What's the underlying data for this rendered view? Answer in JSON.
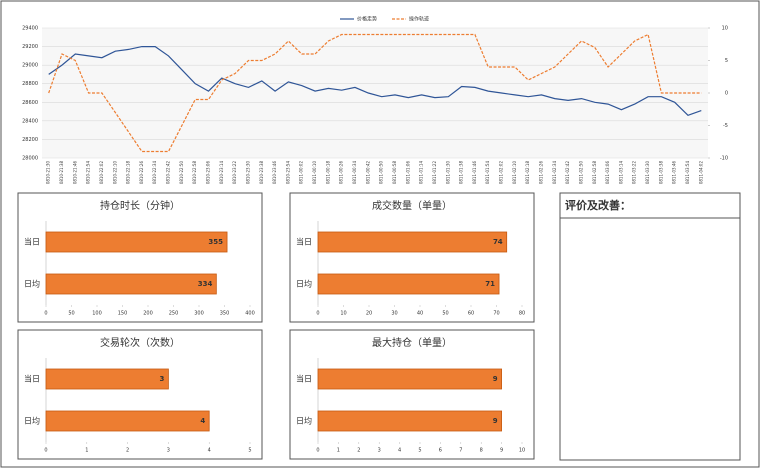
{
  "chart_data": [
    {
      "type": "line",
      "x": [
        "0810-21:30",
        "0810-21:38",
        "0810-21:46",
        "0810-21:54",
        "0810-22:02",
        "0810-22:10",
        "0810-22:18",
        "0810-22:26",
        "0810-22:34",
        "0810-22:42",
        "0810-22:50",
        "0810-22:58",
        "0810-23:06",
        "0810-23:14",
        "0810-23:22",
        "0810-23:30",
        "0810-23:38",
        "0810-23:46",
        "0810-23:54",
        "0811-00:02",
        "0811-00:10",
        "0811-00:18",
        "0811-00:26",
        "0811-00:34",
        "0811-00:42",
        "0811-00:50",
        "0811-00:58",
        "0811-01:06",
        "0811-01:14",
        "0811-01:22",
        "0811-01:30",
        "0811-01:38",
        "0811-01:46",
        "0811-01:54",
        "0811-02:02",
        "0811-02:10",
        "0811-02:18",
        "0811-02:26",
        "0811-02:34",
        "0811-02:42",
        "0811-02:50",
        "0811-02:58",
        "0811-03:06",
        "0811-03:14",
        "0811-03:22",
        "0811-03:30",
        "0811-03:38",
        "0811-03:46",
        "0811-03:54",
        "0811-04:02"
      ],
      "series": [
        {
          "name": "价格走势",
          "color": "#2f5597",
          "values": [
            28900,
            29000,
            29120,
            29100,
            29080,
            29150,
            29170,
            29200,
            29200,
            29100,
            28950,
            28800,
            28720,
            28860,
            28800,
            28760,
            28830,
            28720,
            28820,
            28780,
            28720,
            28750,
            28730,
            28760,
            28700,
            28660,
            28680,
            28650,
            28680,
            28650,
            28660,
            28770,
            28760,
            28720,
            28700,
            28680,
            28660,
            28680,
            28640,
            28620,
            28640,
            28600,
            28580,
            28520,
            28580,
            28660,
            28660,
            28600,
            28460,
            28510
          ]
        },
        {
          "name": "操作轨迹",
          "color": "#ed7d31",
          "axis": "y2",
          "dashed": true,
          "values": [
            0,
            6,
            5,
            0,
            0,
            -3,
            -6,
            -9,
            -9,
            -9,
            -5,
            -1,
            -1,
            2,
            3,
            5,
            5,
            6,
            8,
            6,
            6,
            8,
            9,
            9,
            9,
            9,
            9,
            9,
            9,
            9,
            9,
            9,
            9,
            4,
            4,
            4,
            2,
            3,
            4,
            6,
            8,
            7,
            4,
            6,
            8,
            9,
            0,
            0,
            0,
            0
          ]
        }
      ],
      "ylim": [
        28000,
        29400
      ],
      "yticks": [
        28000,
        28200,
        28400,
        28600,
        28800,
        29000,
        29200,
        29400
      ],
      "y2lim": [
        -10,
        10
      ],
      "y2ticks": [
        -10,
        -5,
        0,
        5,
        10
      ],
      "grid": true,
      "legend": "top"
    },
    {
      "type": "bar",
      "horizontal": true,
      "title": "持仓时长（分钟）",
      "categories": [
        "当日",
        "日均"
      ],
      "values": [
        355,
        334
      ],
      "color": "#ed7d31",
      "xlim": [
        0,
        400
      ],
      "xticks": [
        0,
        50,
        100,
        150,
        200,
        250,
        300,
        350,
        400
      ]
    },
    {
      "type": "bar",
      "horizontal": true,
      "title": "成交数量（单量）",
      "categories": [
        "当日",
        "日均"
      ],
      "values": [
        74,
        71
      ],
      "color": "#ed7d31",
      "xlim": [
        0,
        80
      ],
      "xticks": [
        0,
        10,
        20,
        30,
        40,
        50,
        60,
        70,
        80
      ]
    },
    {
      "type": "bar",
      "horizontal": true,
      "title": "交易轮次（次数）",
      "categories": [
        "当日",
        "日均"
      ],
      "values": [
        3,
        4
      ],
      "color": "#ed7d31",
      "xlim": [
        0,
        5
      ],
      "xticks": [
        0,
        1,
        2,
        3,
        4,
        5
      ]
    },
    {
      "type": "bar",
      "horizontal": true,
      "title": "最大持仓（单量）",
      "categories": [
        "当日",
        "日均"
      ],
      "values": [
        9,
        9
      ],
      "color": "#ed7d31",
      "xlim": [
        0,
        10
      ],
      "xticks": [
        0,
        1,
        2,
        3,
        4,
        5,
        6,
        7,
        8,
        9,
        10
      ]
    }
  ],
  "evaluation": {
    "title": "评价及改善："
  }
}
